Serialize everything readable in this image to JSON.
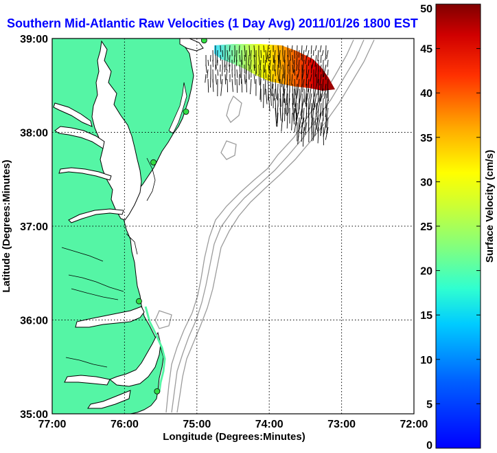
{
  "chart_data": {
    "type": "map",
    "title": "Southern Mid-Atlantic Raw Velocities (1 Day Avg) 2011/01/26 1800 EST",
    "xlabel": "Longitude (Degrees:Minutes)",
    "ylabel": "Latitude (Degrees:Minutes)",
    "xlim": [
      -77,
      -72
    ],
    "ylim": [
      35,
      39
    ],
    "x_ticks": [
      {
        "value": -77,
        "label": "77:00"
      },
      {
        "value": -76,
        "label": "76:00"
      },
      {
        "value": -75,
        "label": "75:00"
      },
      {
        "value": -74,
        "label": "74:00"
      },
      {
        "value": -73,
        "label": "73:00"
      },
      {
        "value": -72,
        "label": "72:00"
      }
    ],
    "y_ticks": [
      {
        "value": 35,
        "label": "35:00"
      },
      {
        "value": 36,
        "label": "36:00"
      },
      {
        "value": 37,
        "label": "37:00"
      },
      {
        "value": 38,
        "label": "38:00"
      },
      {
        "value": 39,
        "label": "39:00"
      }
    ],
    "grid": "dotted",
    "colorbar": {
      "label": "Surface Velocity (cm/s)",
      "min": 0,
      "max": 50,
      "ticks": [
        0,
        5,
        10,
        15,
        20,
        25,
        30,
        35,
        40,
        45,
        50
      ]
    },
    "stations": [
      {
        "lon": -74.9,
        "lat": 38.98
      },
      {
        "lon": -75.15,
        "lat": 38.22
      },
      {
        "lon": -75.6,
        "lat": 37.68
      },
      {
        "lon": -75.8,
        "lat": 36.2
      },
      {
        "lon": -75.55,
        "lat": 35.24
      }
    ],
    "colors": {
      "land": "#55f5a5",
      "land_edge": "#000000",
      "bathymetry": "#9b9b9b",
      "station": "#33dd44"
    }
  }
}
